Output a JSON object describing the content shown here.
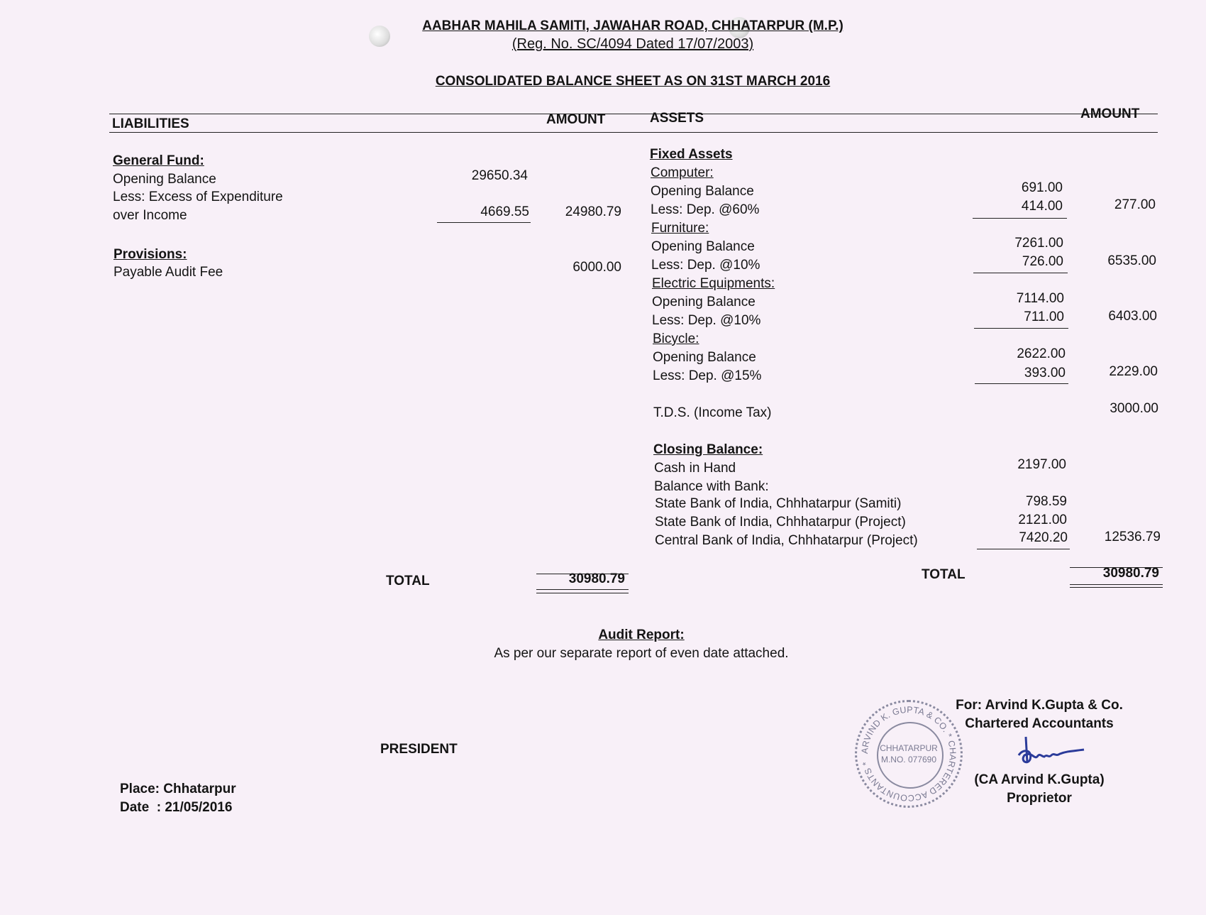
{
  "header": {
    "org": "AABHAR MAHILA SAMITI, JAWAHAR ROAD, CHHATARPUR (M.P.)",
    "reg": "(Reg. No. SC/4094 Dated 17/07/2003)",
    "title": "CONSOLIDATED BALANCE SHEET AS ON 31ST MARCH 2016"
  },
  "columns": {
    "liabilities": "LIABILITIES",
    "amount_left": "AMOUNT",
    "assets": "ASSETS",
    "amount_right": "AMOUNT"
  },
  "liabilities": {
    "general_fund": {
      "heading": "General Fund:",
      "opening_label": "Opening Balance",
      "opening_value": "29650.34",
      "less_label_1": "Less: Excess of Expenditure",
      "less_label_2": "over Income",
      "less_value": "4669.55",
      "net": "24980.79"
    },
    "provisions": {
      "heading": "Provisions:",
      "label": "Payable Audit Fee",
      "value": "6000.00"
    },
    "total_label": "TOTAL",
    "total": "30980.79"
  },
  "assets": {
    "fixed_heading": "Fixed Assets",
    "items": [
      {
        "name": "Computer:",
        "opening_label": "Opening Balance",
        "opening": "691.00",
        "dep_label": "Less: Dep. @60%",
        "dep": "414.00",
        "net": "277.00"
      },
      {
        "name": "Furniture:",
        "opening_label": "Opening Balance",
        "opening": "7261.00",
        "dep_label": "Less: Dep. @10%",
        "dep": "726.00",
        "net": "6535.00"
      },
      {
        "name": "Electric Equipments:",
        "opening_label": "Opening Balance",
        "opening": "7114.00",
        "dep_label": "Less: Dep. @10%",
        "dep": "711.00",
        "net": "6403.00"
      },
      {
        "name": "Bicycle:",
        "opening_label": "Opening Balance",
        "opening": "2622.00",
        "dep_label": "Less: Dep. @15%",
        "dep": "393.00",
        "net": "2229.00"
      }
    ],
    "tds": {
      "label": "T.D.S. (Income Tax)",
      "value": "3000.00"
    },
    "closing": {
      "heading": "Closing Balance:",
      "cash_label": "Cash in Hand",
      "cash": "2197.00",
      "bank_label": "Balance with Bank:",
      "banks": [
        {
          "label": "State Bank of India, Chhhatarpur (Samiti)",
          "value": "798.59"
        },
        {
          "label": "State Bank of India, Chhhatarpur (Project)",
          "value": "2121.00"
        },
        {
          "label": "Central Bank of India, Chhhatarpur (Project)",
          "value": "7420.20"
        }
      ],
      "net": "12536.79"
    },
    "total_label": "TOTAL",
    "total": "30980.79"
  },
  "audit": {
    "heading": "Audit Report:",
    "text": "As per our separate report of even date attached."
  },
  "footer": {
    "president": "PRESIDENT",
    "place": "Place: Chhatarpur",
    "date": "Date  : 21/05/2016",
    "firm": "For: Arvind K.Gupta & Co.",
    "firm_sub": "Chartered Accountants",
    "signatory": "(CA Arvind K.Gupta)",
    "role": "Proprietor"
  },
  "stamp": {
    "outer": "ARVIND K. GUPTA & CO. * CHARTERED ACCOUNTANTS *",
    "line1": "CHHATARPUR",
    "line2": "M.NO. 077690"
  }
}
